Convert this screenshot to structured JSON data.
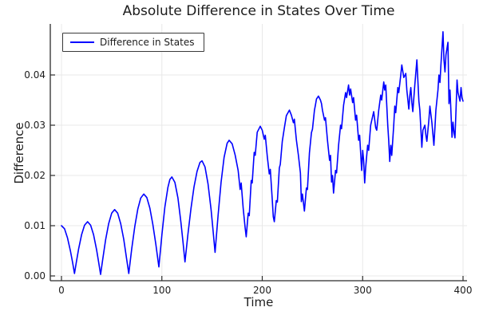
{
  "title": "Absolute Difference in States Over Time",
  "legend": {
    "entries": [
      {
        "label": "Difference in States",
        "color": "#0000ff"
      }
    ]
  },
  "axes": {
    "x": {
      "label": "Time",
      "ticks": [
        0,
        100,
        200,
        300,
        400
      ],
      "tick_labels": [
        "0",
        "100",
        "200",
        "300",
        "400"
      ]
    },
    "y": {
      "label": "Difference",
      "ticks": [
        0,
        0.01,
        0.02,
        0.03,
        0.04
      ],
      "tick_labels": [
        "0.00",
        "0.01",
        "0.02",
        "0.03",
        "0.04"
      ]
    }
  },
  "colors": {
    "line": "#0000ff",
    "grid": "#e8e8e8",
    "spine": "#2b2b2b",
    "text": "#1c1c1c",
    "background": "#ffffff"
  },
  "chart_data": {
    "type": "line",
    "title": "Absolute Difference in States Over Time",
    "xlabel": "Time",
    "ylabel": "Difference",
    "xlim": [
      -11,
      404
    ],
    "ylim": [
      -0.0011,
      0.0502
    ],
    "grid": true,
    "legend_position": "top-left",
    "series": [
      {
        "name": "Difference in States",
        "color": "#0000ff",
        "points": [
          [
            0,
            0.01
          ],
          [
            3,
            0.0094
          ],
          [
            6,
            0.0076
          ],
          [
            9,
            0.0049
          ],
          [
            11,
            0.0028
          ],
          [
            13,
            0.0005
          ],
          [
            15,
            0.003
          ],
          [
            17,
            0.0053
          ],
          [
            20,
            0.0082
          ],
          [
            23,
            0.0101
          ],
          [
            26,
            0.0108
          ],
          [
            29,
            0.0101
          ],
          [
            32,
            0.0082
          ],
          [
            35,
            0.0052
          ],
          [
            37,
            0.0028
          ],
          [
            39,
            0.0003
          ],
          [
            41,
            0.0032
          ],
          [
            44,
            0.0072
          ],
          [
            47,
            0.0104
          ],
          [
            50,
            0.0125
          ],
          [
            53,
            0.0132
          ],
          [
            56,
            0.0125
          ],
          [
            59,
            0.0104
          ],
          [
            62,
            0.0073
          ],
          [
            65,
            0.0033
          ],
          [
            67,
            0.0005
          ],
          [
            70,
            0.0054
          ],
          [
            73,
            0.0098
          ],
          [
            76,
            0.0133
          ],
          [
            79,
            0.0155
          ],
          [
            82,
            0.0163
          ],
          [
            85,
            0.0156
          ],
          [
            88,
            0.0135
          ],
          [
            91,
            0.0103
          ],
          [
            94,
            0.0063
          ],
          [
            97,
            0.0018
          ],
          [
            100,
            0.0082
          ],
          [
            103,
            0.0137
          ],
          [
            106,
            0.0176
          ],
          [
            108,
            0.0192
          ],
          [
            110,
            0.0197
          ],
          [
            113,
            0.0186
          ],
          [
            116,
            0.0155
          ],
          [
            119,
            0.0107
          ],
          [
            121,
            0.0068
          ],
          [
            123,
            0.0028
          ],
          [
            126,
            0.0083
          ],
          [
            129,
            0.0134
          ],
          [
            132,
            0.0177
          ],
          [
            135,
            0.0208
          ],
          [
            138,
            0.0226
          ],
          [
            140,
            0.0229
          ],
          [
            143,
            0.0217
          ],
          [
            146,
            0.0183
          ],
          [
            149,
            0.0132
          ],
          [
            151,
            0.009
          ],
          [
            153,
            0.0047
          ],
          [
            156,
            0.0121
          ],
          [
            159,
            0.0186
          ],
          [
            162,
            0.0236
          ],
          [
            165,
            0.0264
          ],
          [
            167,
            0.027
          ],
          [
            170,
            0.0263
          ],
          [
            173,
            0.0241
          ],
          [
            176,
            0.021
          ],
          [
            178,
            0.0172
          ],
          [
            179,
            0.0185
          ],
          [
            181,
            0.0135
          ],
          [
            183,
            0.0095
          ],
          [
            184,
            0.0078
          ],
          [
            186,
            0.0125
          ],
          [
            187,
            0.012
          ],
          [
            189,
            0.019
          ],
          [
            190,
            0.0185
          ],
          [
            192,
            0.0246
          ],
          [
            193,
            0.024
          ],
          [
            195,
            0.0286
          ],
          [
            198,
            0.0298
          ],
          [
            200,
            0.029
          ],
          [
            202,
            0.0272
          ],
          [
            203,
            0.028
          ],
          [
            205,
            0.0238
          ],
          [
            207,
            0.0203
          ],
          [
            208,
            0.0212
          ],
          [
            210,
            0.015
          ],
          [
            211,
            0.0118
          ],
          [
            212,
            0.0108
          ],
          [
            214,
            0.015
          ],
          [
            215,
            0.0147
          ],
          [
            217,
            0.0215
          ],
          [
            218,
            0.0222
          ],
          [
            220,
            0.0268
          ],
          [
            222,
            0.0295
          ],
          [
            224,
            0.0319
          ],
          [
            227,
            0.033
          ],
          [
            229,
            0.032
          ],
          [
            231,
            0.0305
          ],
          [
            232,
            0.0312
          ],
          [
            234,
            0.027
          ],
          [
            236,
            0.024
          ],
          [
            238,
            0.0205
          ],
          [
            239,
            0.0148
          ],
          [
            240,
            0.0163
          ],
          [
            242,
            0.0129
          ],
          [
            244,
            0.0175
          ],
          [
            245,
            0.0172
          ],
          [
            247,
            0.0245
          ],
          [
            249,
            0.0285
          ],
          [
            250,
            0.0292
          ],
          [
            252,
            0.033
          ],
          [
            253,
            0.034
          ],
          [
            254,
            0.0352
          ],
          [
            256,
            0.0358
          ],
          [
            258,
            0.035
          ],
          [
            259,
            0.0343
          ],
          [
            260,
            0.033
          ],
          [
            262,
            0.031
          ],
          [
            263,
            0.0315
          ],
          [
            265,
            0.027
          ],
          [
            267,
            0.023
          ],
          [
            268,
            0.024
          ],
          [
            269,
            0.0187
          ],
          [
            270,
            0.02
          ],
          [
            271,
            0.0165
          ],
          [
            273,
            0.021
          ],
          [
            274,
            0.0205
          ],
          [
            276,
            0.026
          ],
          [
            278,
            0.03
          ],
          [
            279,
            0.0293
          ],
          [
            281,
            0.034
          ],
          [
            283,
            0.0365
          ],
          [
            284,
            0.0355
          ],
          [
            286,
            0.038
          ],
          [
            287,
            0.036
          ],
          [
            288,
            0.0372
          ],
          [
            290,
            0.0345
          ],
          [
            291,
            0.0355
          ],
          [
            293,
            0.031
          ],
          [
            294,
            0.032
          ],
          [
            296,
            0.027
          ],
          [
            297,
            0.028
          ],
          [
            299,
            0.021
          ],
          [
            300,
            0.025
          ],
          [
            301,
            0.023
          ],
          [
            302,
            0.0185
          ],
          [
            303,
            0.0215
          ],
          [
            305,
            0.026
          ],
          [
            306,
            0.025
          ],
          [
            308,
            0.03
          ],
          [
            311,
            0.0327
          ],
          [
            313,
            0.0295
          ],
          [
            314,
            0.029
          ],
          [
            316,
            0.033
          ],
          [
            318,
            0.036
          ],
          [
            319,
            0.035
          ],
          [
            321,
            0.0386
          ],
          [
            322,
            0.037
          ],
          [
            323,
            0.038
          ],
          [
            325,
            0.03
          ],
          [
            326,
            0.027
          ],
          [
            327,
            0.0228
          ],
          [
            328,
            0.026
          ],
          [
            329,
            0.024
          ],
          [
            331,
            0.03
          ],
          [
            332,
            0.0338
          ],
          [
            333,
            0.0325
          ],
          [
            335,
            0.0375
          ],
          [
            336,
            0.0365
          ],
          [
            338,
            0.04
          ],
          [
            339,
            0.042
          ],
          [
            341,
            0.0395
          ],
          [
            343,
            0.0403
          ],
          [
            344,
            0.037
          ],
          [
            346,
            0.0332
          ],
          [
            347,
            0.036
          ],
          [
            348,
            0.0375
          ],
          [
            349,
            0.0345
          ],
          [
            350,
            0.0327
          ],
          [
            352,
            0.038
          ],
          [
            354,
            0.043
          ],
          [
            355,
            0.039
          ],
          [
            356,
            0.0348
          ],
          [
            357,
            0.033
          ],
          [
            359,
            0.0256
          ],
          [
            360,
            0.029
          ],
          [
            362,
            0.03
          ],
          [
            363,
            0.028
          ],
          [
            364,
            0.0268
          ],
          [
            366,
            0.031
          ],
          [
            367,
            0.0338
          ],
          [
            369,
            0.0305
          ],
          [
            371,
            0.026
          ],
          [
            372,
            0.0295
          ],
          [
            373,
            0.033
          ],
          [
            375,
            0.037
          ],
          [
            376,
            0.04
          ],
          [
            377,
            0.0385
          ],
          [
            378,
            0.042
          ],
          [
            380,
            0.0486
          ],
          [
            381,
            0.043
          ],
          [
            382,
            0.0406
          ],
          [
            383,
            0.044
          ],
          [
            385,
            0.0465
          ],
          [
            386,
            0.0343
          ],
          [
            387,
            0.037
          ],
          [
            389,
            0.0276
          ],
          [
            390,
            0.0306
          ],
          [
            391,
            0.0285
          ],
          [
            392,
            0.0275
          ],
          [
            393,
            0.033
          ],
          [
            394,
            0.039
          ],
          [
            395,
            0.0365
          ],
          [
            397,
            0.0348
          ],
          [
            398,
            0.0375
          ],
          [
            399,
            0.0355
          ],
          [
            400,
            0.0348
          ]
        ]
      }
    ]
  }
}
